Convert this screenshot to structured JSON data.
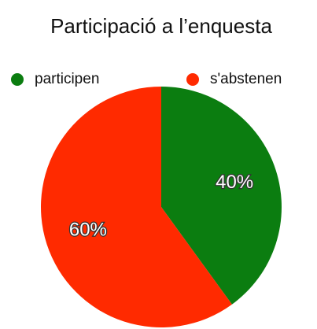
{
  "chart_data": {
    "type": "pie",
    "title": "Participació a l’enquesta",
    "categories": [
      "participen",
      "s'abstenen"
    ],
    "values": [
      40,
      60
    ],
    "value_labels": [
      "40%",
      "60%"
    ],
    "colors": [
      "#0b7d10",
      "#ff2a00"
    ],
    "legend": "top"
  }
}
